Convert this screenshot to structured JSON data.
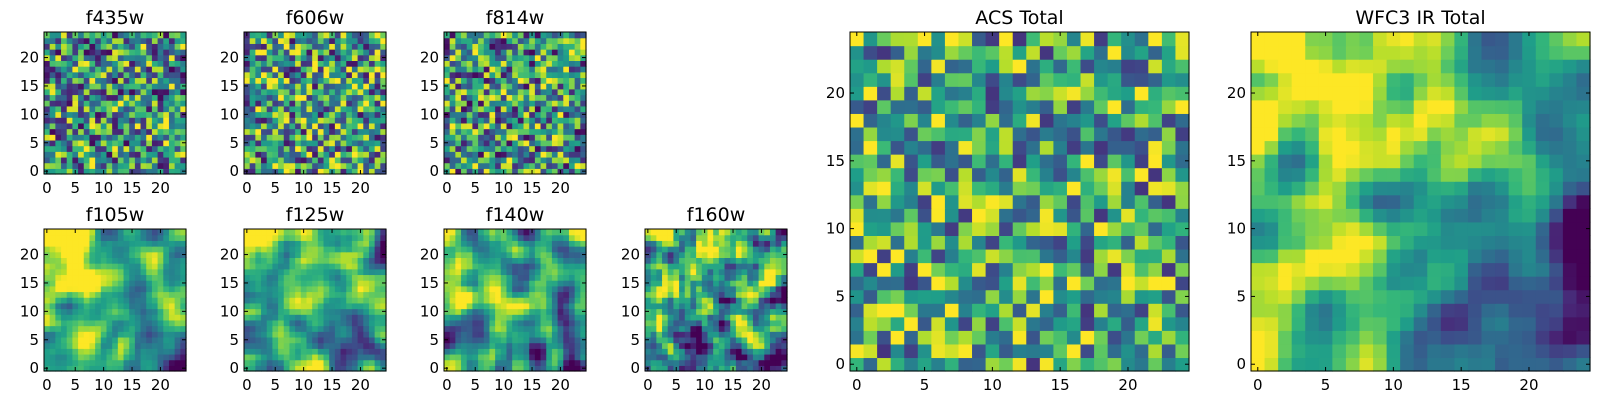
{
  "chart_data": [
    {
      "type": "heatmap",
      "title": "f435w",
      "xlim": [
        0,
        25
      ],
      "ylim": [
        0,
        25
      ],
      "x_ticks": [
        "0",
        "5",
        "10",
        "15",
        "20"
      ],
      "y_ticks": [
        "0",
        "5",
        "10",
        "15",
        "20"
      ],
      "grid": false,
      "seed": 11,
      "smoothness": 0,
      "mean": 0.52,
      "spread": 0.5,
      "trend_x": 0,
      "trend_y": 0
    },
    {
      "type": "heatmap",
      "title": "f606w",
      "xlim": [
        0,
        25
      ],
      "ylim": [
        0,
        25
      ],
      "x_ticks": [
        "0",
        "5",
        "10",
        "15",
        "20"
      ],
      "y_ticks": [
        "0",
        "5",
        "10",
        "15",
        "20"
      ],
      "grid": false,
      "seed": 23,
      "smoothness": 0,
      "mean": 0.55,
      "spread": 0.5,
      "trend_x": 0,
      "trend_y": 0
    },
    {
      "type": "heatmap",
      "title": "f814w",
      "xlim": [
        0,
        25
      ],
      "ylim": [
        0,
        25
      ],
      "x_ticks": [
        "0",
        "5",
        "10",
        "15",
        "20"
      ],
      "y_ticks": [
        "0",
        "5",
        "10",
        "15",
        "20"
      ],
      "grid": false,
      "seed": 37,
      "smoothness": 0,
      "mean": 0.52,
      "spread": 0.5,
      "trend_x": 0,
      "trend_y": 0
    },
    {
      "type": "heatmap",
      "title": "f105w",
      "xlim": [
        0,
        25
      ],
      "ylim": [
        0,
        25
      ],
      "x_ticks": [
        "0",
        "5",
        "10",
        "15",
        "20"
      ],
      "y_ticks": [
        "0",
        "5",
        "10",
        "15",
        "20"
      ],
      "grid": false,
      "seed": 41,
      "smoothness": 2,
      "mean": 0.62,
      "spread": 0.65,
      "trend_x": -0.25,
      "trend_y": 0.25
    },
    {
      "type": "heatmap",
      "title": "f125w",
      "xlim": [
        0,
        25
      ],
      "ylim": [
        0,
        25
      ],
      "x_ticks": [
        "0",
        "5",
        "10",
        "15",
        "20"
      ],
      "y_ticks": [
        "0",
        "5",
        "10",
        "15",
        "20"
      ],
      "grid": false,
      "seed": 53,
      "smoothness": 2,
      "mean": 0.6,
      "spread": 0.65,
      "trend_x": -0.15,
      "trend_y": 0.2
    },
    {
      "type": "heatmap",
      "title": "f140w",
      "xlim": [
        0,
        25
      ],
      "ylim": [
        0,
        25
      ],
      "x_ticks": [
        "0",
        "5",
        "10",
        "15",
        "20"
      ],
      "y_ticks": [
        "0",
        "5",
        "10",
        "15",
        "20"
      ],
      "grid": false,
      "seed": 67,
      "smoothness": 2,
      "mean": 0.58,
      "spread": 0.65,
      "trend_x": -0.2,
      "trend_y": 0.2
    },
    {
      "type": "heatmap",
      "title": "f160w",
      "xlim": [
        0,
        25
      ],
      "ylim": [
        0,
        25
      ],
      "x_ticks": [
        "0",
        "5",
        "10",
        "15",
        "20"
      ],
      "y_ticks": [
        "0",
        "5",
        "10",
        "15",
        "20"
      ],
      "grid": false,
      "seed": 79,
      "smoothness": 1,
      "mean": 0.55,
      "spread": 0.7,
      "trend_x": -0.25,
      "trend_y": 0.3
    },
    {
      "type": "heatmap",
      "title": "ACS Total",
      "xlim": [
        0,
        25
      ],
      "ylim": [
        0,
        25
      ],
      "x_ticks": [
        "0",
        "5",
        "10",
        "15",
        "20"
      ],
      "y_ticks": [
        "0",
        "5",
        "10",
        "15",
        "20"
      ],
      "grid": false,
      "seed": 97,
      "smoothness": 0,
      "mean": 0.6,
      "spread": 0.45,
      "trend_x": 0,
      "trend_y": 0
    },
    {
      "type": "heatmap",
      "title": "WFC3 IR Total",
      "xlim": [
        0,
        25
      ],
      "ylim": [
        0,
        25
      ],
      "x_ticks": [
        "0",
        "5",
        "10",
        "15",
        "20"
      ],
      "y_ticks": [
        "0",
        "5",
        "10",
        "15",
        "20"
      ],
      "grid": false,
      "seed": 113,
      "smoothness": 2,
      "mean": 0.55,
      "spread": 0.5,
      "trend_x": -0.45,
      "trend_y": 0.35
    }
  ]
}
